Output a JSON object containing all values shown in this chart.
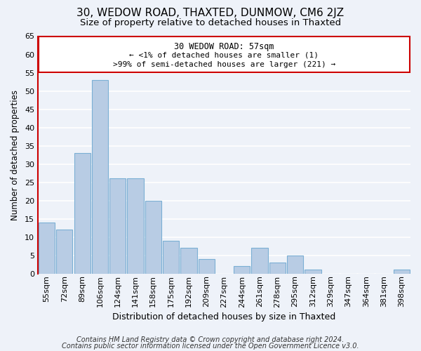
{
  "title": "30, WEDOW ROAD, THAXTED, DUNMOW, CM6 2JZ",
  "subtitle": "Size of property relative to detached houses in Thaxted",
  "xlabel": "Distribution of detached houses by size in Thaxted",
  "ylabel": "Number of detached properties",
  "bar_labels": [
    "55sqm",
    "72sqm",
    "89sqm",
    "106sqm",
    "124sqm",
    "141sqm",
    "158sqm",
    "175sqm",
    "192sqm",
    "209sqm",
    "227sqm",
    "244sqm",
    "261sqm",
    "278sqm",
    "295sqm",
    "312sqm",
    "329sqm",
    "347sqm",
    "364sqm",
    "381sqm",
    "398sqm"
  ],
  "bar_heights": [
    14,
    12,
    33,
    53,
    26,
    26,
    20,
    9,
    7,
    4,
    0,
    2,
    7,
    3,
    5,
    1,
    0,
    0,
    0,
    0,
    1
  ],
  "bar_color": "#b8cce4",
  "bar_edge_color": "#7bafd4",
  "annotation_title": "30 WEDOW ROAD: 57sqm",
  "annotation_line1": "← <1% of detached houses are smaller (1)",
  "annotation_line2": ">99% of semi-detached houses are larger (221) →",
  "annotation_box_color": "#ffffff",
  "annotation_box_edge_color": "#cc0000",
  "red_left_border": true,
  "ylim": [
    0,
    65
  ],
  "yticks": [
    0,
    5,
    10,
    15,
    20,
    25,
    30,
    35,
    40,
    45,
    50,
    55,
    60,
    65
  ],
  "footer1": "Contains HM Land Registry data © Crown copyright and database right 2024.",
  "footer2": "Contains public sector information licensed under the Open Government Licence v3.0.",
  "background_color": "#eef2f9",
  "grid_color": "#ffffff",
  "title_fontsize": 11,
  "subtitle_fontsize": 9.5,
  "ylabel_fontsize": 8.5,
  "xlabel_fontsize": 9,
  "tick_fontsize": 8,
  "footer_fontsize": 7
}
